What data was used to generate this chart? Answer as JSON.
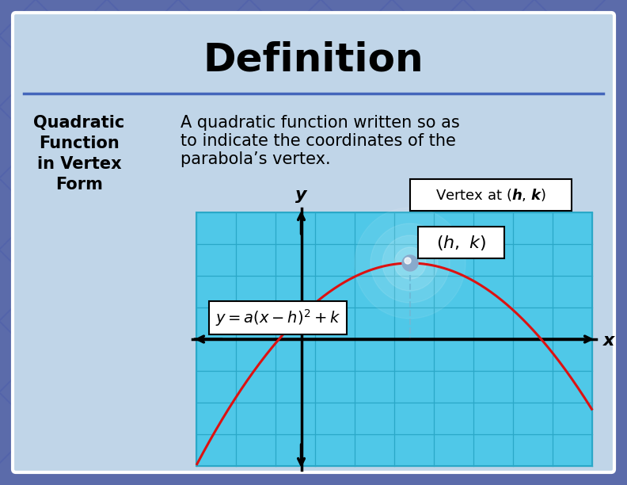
{
  "title": "Definition",
  "term_lines": [
    "Quadratic",
    "Function",
    "in Vertex",
    "Form"
  ],
  "def_line1": "A quadratic function written so as",
  "def_line2": "to indicate the coordinates of the",
  "def_line3": "parabola’s vertex.",
  "bg_outer": "#5b6baa",
  "bg_inner": "#c0d5e8",
  "graph_bg": "#4fc8e8",
  "graph_grid": "#2aa8c8",
  "curve_color": "#dd1111",
  "axis_color": "#111111",
  "dash_color": "#6bbbd8",
  "vertex_dot": "#7ab0d8",
  "box_bg": "#ffffff",
  "title_fontsize": 36,
  "term_fontsize": 15,
  "def_fontsize": 15,
  "formula_fontsize": 13,
  "vertex_label_fontsize": 14,
  "callout_fontsize": 13,
  "fig_w": 7.92,
  "fig_h": 6.12,
  "dpi": 100
}
